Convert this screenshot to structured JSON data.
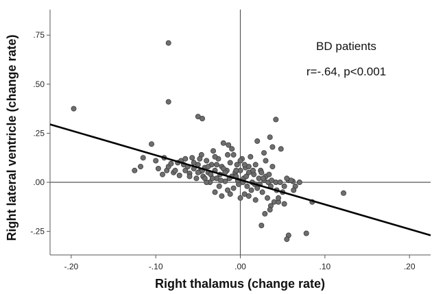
{
  "chart_data": {
    "type": "scatter",
    "title": "",
    "xlabel": "Right thalamus (change rate)",
    "ylabel": "Right lateral ventricle (change rate)",
    "xlim": [
      -0.225,
      0.225
    ],
    "ylim": [
      -0.37,
      0.88
    ],
    "x_ticks": [
      -0.2,
      -0.1,
      0.0,
      0.1,
      0.2
    ],
    "x_tick_labels": [
      "-.20",
      "-.10",
      ".00",
      ".10",
      ".20"
    ],
    "y_ticks": [
      -0.25,
      0.0,
      0.25,
      0.5,
      0.75
    ],
    "y_tick_labels": [
      "-.25",
      ".00",
      ".25",
      ".50",
      ".75"
    ],
    "reference_lines": {
      "x": 0,
      "y": 0
    },
    "grid": false,
    "annotations": {
      "group": "BD patients",
      "stat": "r=-.64, p<0.001"
    },
    "fit_line": {
      "x": [
        -0.225,
        0.225
      ],
      "y": [
        0.295,
        -0.27
      ]
    },
    "marker_color": "#6e6e6e",
    "marker_edge": "#3a3a3a",
    "line_color": "#000000",
    "series": [
      {
        "points": [
          [
            -0.197,
            0.375
          ],
          [
            -0.085,
            0.71
          ],
          [
            -0.085,
            0.41
          ],
          [
            -0.05,
            0.335
          ],
          [
            -0.045,
            0.325
          ],
          [
            -0.125,
            0.06
          ],
          [
            -0.118,
            0.08
          ],
          [
            -0.115,
            0.125
          ],
          [
            -0.105,
            0.195
          ],
          [
            -0.1,
            0.11
          ],
          [
            -0.097,
            0.07
          ],
          [
            -0.092,
            0.04
          ],
          [
            -0.09,
            0.125
          ],
          [
            -0.087,
            0.06
          ],
          [
            -0.085,
            0.08
          ],
          [
            -0.082,
            0.095
          ],
          [
            -0.079,
            0.05
          ],
          [
            -0.077,
            0.06
          ],
          [
            -0.074,
            0.1
          ],
          [
            -0.072,
            0.035
          ],
          [
            -0.07,
            0.11
          ],
          [
            -0.067,
            0.09
          ],
          [
            -0.065,
            0.06
          ],
          [
            -0.062,
            0.08
          ],
          [
            -0.06,
            0.045
          ],
          [
            -0.057,
            0.125
          ],
          [
            -0.055,
            0.07
          ],
          [
            -0.052,
            0.02
          ],
          [
            -0.05,
            0.09
          ],
          [
            -0.048,
            0.055
          ],
          [
            -0.046,
            0.14
          ],
          [
            -0.044,
            0.03
          ],
          [
            -0.042,
            0.075
          ],
          [
            -0.04,
            0.11
          ],
          [
            -0.038,
            0.05
          ],
          [
            -0.036,
            0.0
          ],
          [
            -0.034,
            0.09
          ],
          [
            -0.032,
            0.16
          ],
          [
            -0.03,
            0.06
          ],
          [
            -0.028,
            0.02
          ],
          [
            -0.026,
            0.12
          ],
          [
            -0.024,
            0.04
          ],
          [
            -0.022,
            0.08
          ],
          [
            -0.02,
            0.2
          ],
          [
            -0.018,
            0.005
          ],
          [
            -0.016,
            0.06
          ],
          [
            -0.014,
            0.19
          ],
          [
            -0.012,
            0.1
          ],
          [
            -0.01,
            0.03
          ],
          [
            -0.008,
            0.14
          ],
          [
            -0.006,
            0.05
          ],
          [
            -0.004,
            0.09
          ],
          [
            -0.002,
            -0.01
          ],
          [
            0.0,
            0.06
          ],
          [
            0.002,
            0.12
          ],
          [
            0.004,
            0.02
          ],
          [
            0.006,
            0.075
          ],
          [
            0.008,
            -0.02
          ],
          [
            0.01,
            0.05
          ],
          [
            0.012,
            0.13
          ],
          [
            0.014,
            0.0
          ],
          [
            0.016,
            0.04
          ],
          [
            0.018,
            0.09
          ],
          [
            0.02,
            -0.03
          ],
          [
            0.022,
            0.02
          ],
          [
            0.024,
            0.06
          ],
          [
            0.026,
            -0.05
          ],
          [
            0.028,
            0.01
          ],
          [
            0.03,
            0.03
          ],
          [
            0.032,
            -0.08
          ],
          [
            0.034,
            0.04
          ],
          [
            0.036,
            -0.02
          ],
          [
            0.038,
            0.08
          ],
          [
            0.04,
            -0.1
          ],
          [
            0.042,
            0.0
          ],
          [
            -0.035,
            0.04
          ],
          [
            -0.025,
            -0.02
          ],
          [
            -0.015,
            -0.04
          ],
          [
            -0.005,
            0.03
          ],
          [
            0.005,
            -0.06
          ],
          [
            -0.03,
            0.13
          ],
          [
            -0.02,
            0.07
          ],
          [
            -0.01,
            0.17
          ],
          [
            0.0,
            0.11
          ],
          [
            0.01,
            0.08
          ],
          [
            -0.045,
            0.06
          ],
          [
            -0.04,
            0.0
          ],
          [
            -0.028,
            0.09
          ],
          [
            -0.018,
            0.05
          ],
          [
            -0.008,
            -0.03
          ],
          [
            0.003,
            0.0
          ],
          [
            0.013,
            -0.04
          ],
          [
            0.023,
            -0.01
          ],
          [
            0.033,
            0.0
          ],
          [
            0.043,
            -0.04
          ],
          [
            -0.06,
            0.03
          ],
          [
            -0.05,
            0.05
          ],
          [
            -0.042,
            0.02
          ],
          [
            -0.033,
            0.02
          ],
          [
            -0.023,
            0.01
          ],
          [
            -0.013,
            0.02
          ],
          [
            -0.003,
            0.01
          ],
          [
            0.007,
            0.03
          ],
          [
            0.017,
            -0.01
          ],
          [
            0.027,
            0.02
          ],
          [
            0.037,
            0.01
          ],
          [
            0.047,
            0.0
          ],
          [
            0.052,
            -0.02
          ],
          [
            0.057,
            0.01
          ],
          [
            0.062,
            0.005
          ],
          [
            0.045,
            -0.1
          ],
          [
            0.052,
            -0.11
          ],
          [
            0.042,
            0.32
          ],
          [
            0.035,
            0.23
          ],
          [
            0.03,
            0.11
          ],
          [
            0.02,
            0.21
          ],
          [
            0.028,
            0.15
          ],
          [
            0.038,
            0.18
          ],
          [
            0.048,
            0.17
          ],
          [
            0.05,
            -0.05
          ],
          [
            0.036,
            -0.12
          ],
          [
            0.029,
            -0.16
          ],
          [
            0.025,
            -0.22
          ],
          [
            0.035,
            -0.14
          ],
          [
            0.045,
            -0.08
          ],
          [
            0.057,
            -0.27
          ],
          [
            0.055,
            -0.29
          ],
          [
            0.078,
            -0.26
          ],
          [
            0.085,
            -0.1
          ],
          [
            0.122,
            -0.055
          ],
          [
            0.065,
            -0.02
          ],
          [
            0.06,
            0.01
          ],
          [
            0.07,
            0.0
          ],
          [
            0.063,
            -0.04
          ],
          [
            0.055,
            0.02
          ],
          [
            -0.015,
            0.14
          ],
          [
            -0.005,
            0.06
          ],
          [
            0.005,
            0.09
          ],
          [
            0.015,
            0.06
          ],
          [
            0.025,
            0.05
          ],
          [
            -0.065,
            0.12
          ],
          [
            -0.055,
            0.1
          ],
          [
            -0.048,
            0.12
          ],
          [
            -0.038,
            0.08
          ],
          [
            -0.012,
            -0.06
          ],
          [
            0.0,
            -0.08
          ],
          [
            0.01,
            -0.07
          ],
          [
            0.018,
            -0.09
          ],
          [
            -0.022,
            -0.07
          ],
          [
            -0.03,
            -0.05
          ]
        ]
      }
    ]
  }
}
